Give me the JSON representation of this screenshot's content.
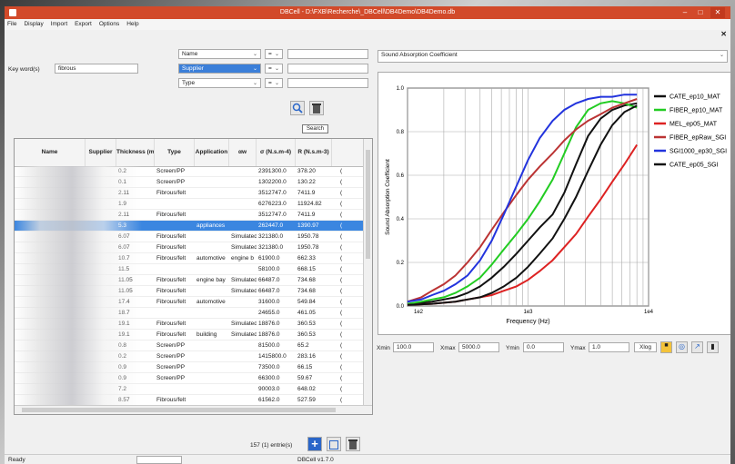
{
  "window": {
    "title": "DBCell - D:\\FXB\\Recherche\\_DBCell\\DB4Demo\\DB4Demo.db"
  },
  "menu": [
    "File",
    "Display",
    "Import",
    "Export",
    "Options",
    "Help"
  ],
  "search": {
    "keyword_label": "Key word(s)",
    "keyword_value": "fibrous",
    "filters": [
      {
        "field": "Name",
        "op": "=",
        "value": ""
      },
      {
        "field": "Supplier",
        "op": "=",
        "value": ""
      },
      {
        "field": "Type",
        "op": "=",
        "value": ""
      }
    ],
    "tooltip": "Search"
  },
  "table": {
    "columns": [
      "Name",
      "Supplier",
      "Thickness (mm",
      "Type",
      "Application",
      "αw",
      "σ (N.s.m-4)",
      "R (N.s.m-3)"
    ],
    "rows": [
      [
        "",
        "",
        "0.2",
        "Screen/PP",
        "",
        "",
        "2391300.0",
        "378.20"
      ],
      [
        "",
        "",
        "0.1",
        "Screen/PP",
        "",
        "",
        "1302200.0",
        "130.22"
      ],
      [
        "",
        "",
        "2.11",
        "Fibrous/felt",
        "",
        "",
        "3512747.0",
        "7411.9"
      ],
      [
        "",
        "",
        "1.9",
        "",
        "",
        "",
        "6276223.0",
        "11924.82"
      ],
      [
        "",
        "",
        "2.11",
        "Fibrous/felt",
        "",
        "",
        "3512747.0",
        "7411.9"
      ],
      [
        "",
        "",
        "5.3",
        "",
        "appliances",
        "",
        "262447.0",
        "1390.97"
      ],
      [
        "",
        "",
        "6.07",
        "Fibrous/felt",
        "",
        "Simulated",
        "321380.0",
        "1950.78"
      ],
      [
        "",
        "",
        "6.07",
        "Fibrous/felt",
        "",
        "Simulated",
        "321380.0",
        "1950.78"
      ],
      [
        "",
        "",
        "10.7",
        "Fibrous/felt",
        "automotive",
        "engine b",
        "61900.0",
        "662.33"
      ],
      [
        "",
        "",
        "11.5",
        "",
        "",
        "",
        "58100.0",
        "668.15"
      ],
      [
        "",
        "",
        "11.05",
        "Fibrous/felt",
        "engine bay",
        "Simulated",
        "66487.0",
        "734.68"
      ],
      [
        "",
        "",
        "11.05",
        "Fibrous/felt",
        "",
        "Simulated",
        "66487.0",
        "734.68"
      ],
      [
        "",
        "",
        "17.4",
        "Fibrous/felt",
        "automotive",
        "",
        "31600.0",
        "549.84"
      ],
      [
        "",
        "",
        "18.7",
        "",
        "",
        "",
        "24655.0",
        "461.05"
      ],
      [
        "",
        "",
        "19.1",
        "Fibrous/felt",
        "",
        "Simulated",
        "18876.0",
        "360.53"
      ],
      [
        "",
        "",
        "19.1",
        "Fibrous/felt",
        "building",
        "Simulated",
        "18876.0",
        "360.53"
      ],
      [
        "",
        "",
        "0.8",
        "Screen/PP",
        "",
        "",
        "81500.0",
        "65.2"
      ],
      [
        "",
        "",
        "0.2",
        "Screen/PP",
        "",
        "",
        "1415800.0",
        "283.16"
      ],
      [
        "",
        "",
        "0.9",
        "Screen/PP",
        "",
        "",
        "73500.0",
        "66.15"
      ],
      [
        "",
        "",
        "0.9",
        "Screen/PP",
        "",
        "",
        "66300.0",
        "59.67"
      ],
      [
        "",
        "",
        "7.2",
        "",
        "",
        "",
        "90003.0",
        "648.02"
      ],
      [
        "",
        "",
        "8.57",
        "Fibrous/felt",
        "",
        "",
        "61562.0",
        "527.59"
      ],
      [
        "",
        "",
        "8.57",
        "Fibrous/felt",
        "",
        "",
        "61562.0",
        "527.59"
      ]
    ],
    "selected_row": 5,
    "row_tail": "("
  },
  "footer": {
    "entries": "157 (1) entrie(s)"
  },
  "chart_panel": {
    "property": "Sound Absorption Coefficient",
    "controls": {
      "xmin_label": "Xmin",
      "xmin": "100.0",
      "xmax_label": "Xmax",
      "xmax": "5000.0",
      "ymin_label": "Ymin",
      "ymin": "0.0",
      "ymax_label": "Ymax",
      "ymax": "1.0",
      "xlog_label": "Xlog"
    }
  },
  "chart_data": {
    "type": "line",
    "xlabel": "Frequency (Hz)",
    "ylabel": "Sound Absorption Coefficient",
    "xscale": "log",
    "xlim": [
      100,
      10000
    ],
    "ylim": [
      0,
      1
    ],
    "xticks": [
      {
        "v": 100,
        "label": "1e2"
      },
      {
        "v": 1000,
        "label": "1e3"
      },
      {
        "v": 10000,
        "label": "1e4"
      }
    ],
    "yticks": [
      {
        "v": 0,
        "label": "0.0"
      },
      {
        "v": 0.2,
        "label": "0.2"
      },
      {
        "v": 0.4,
        "label": "0.4"
      },
      {
        "v": 0.6,
        "label": "0.6"
      },
      {
        "v": 0.8,
        "label": "0.8"
      },
      {
        "v": 1.0,
        "label": "1.0"
      }
    ],
    "grid": true,
    "legend": "top-right",
    "x": [
      100,
      130,
      160,
      200,
      250,
      315,
      400,
      500,
      630,
      800,
      1000,
      1250,
      1600,
      2000,
      2500,
      3150,
      4000,
      5000,
      6300,
      8000
    ],
    "series": [
      {
        "name": "CATE_ep10_MAT",
        "color": "#111111",
        "values": [
          0.01,
          0.015,
          0.02,
          0.03,
          0.04,
          0.06,
          0.09,
          0.13,
          0.18,
          0.24,
          0.3,
          0.36,
          0.42,
          0.52,
          0.65,
          0.78,
          0.86,
          0.9,
          0.92,
          0.93
        ]
      },
      {
        "name": "FIBER_ep10_MAT",
        "color": "#22cc22",
        "values": [
          0.01,
          0.02,
          0.03,
          0.04,
          0.06,
          0.09,
          0.13,
          0.19,
          0.26,
          0.33,
          0.4,
          0.48,
          0.58,
          0.7,
          0.82,
          0.9,
          0.93,
          0.94,
          0.93,
          0.91
        ]
      },
      {
        "name": "MEL_ep05_MAT",
        "color": "#dd2222",
        "values": [
          0.005,
          0.008,
          0.01,
          0.015,
          0.02,
          0.03,
          0.04,
          0.05,
          0.07,
          0.09,
          0.12,
          0.16,
          0.21,
          0.27,
          0.33,
          0.41,
          0.49,
          0.57,
          0.65,
          0.74
        ]
      },
      {
        "name": "FIBER_epRaw_SGI",
        "color": "#bb3333",
        "values": [
          0.02,
          0.04,
          0.07,
          0.1,
          0.14,
          0.2,
          0.27,
          0.35,
          0.43,
          0.51,
          0.58,
          0.64,
          0.7,
          0.76,
          0.81,
          0.85,
          0.88,
          0.91,
          0.93,
          0.95
        ]
      },
      {
        "name": "SGI1000_ep30_SGI",
        "color": "#2233dd",
        "values": [
          0.02,
          0.03,
          0.05,
          0.07,
          0.1,
          0.14,
          0.21,
          0.3,
          0.42,
          0.55,
          0.67,
          0.77,
          0.85,
          0.9,
          0.93,
          0.95,
          0.96,
          0.96,
          0.97,
          0.97
        ]
      },
      {
        "name": "CATE_ep05_SGI",
        "color": "#111111",
        "values": [
          0.005,
          0.008,
          0.01,
          0.015,
          0.02,
          0.03,
          0.04,
          0.06,
          0.09,
          0.13,
          0.18,
          0.24,
          0.31,
          0.4,
          0.5,
          0.62,
          0.74,
          0.83,
          0.89,
          0.92
        ]
      }
    ]
  },
  "status": {
    "left": "Ready",
    "center": "DBCell v1.7.0"
  },
  "colors": {
    "titlebar": "#d24a2a",
    "selection": "#3b86e0",
    "accent": "#3b7fd9"
  }
}
